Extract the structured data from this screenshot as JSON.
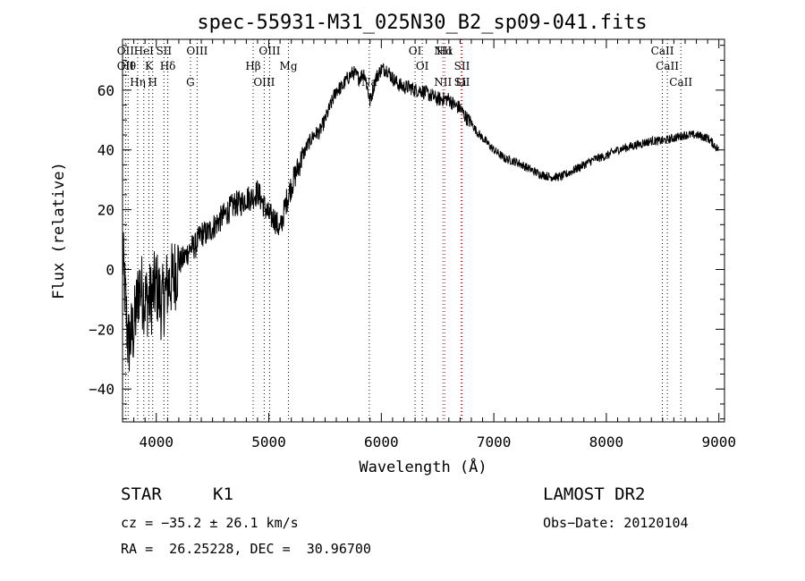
{
  "chart_data": {
    "type": "line",
    "title": "spec-55931-M31_025N30_B2_sp09-041.fits",
    "xlabel": "Wavelength (Å)",
    "ylabel": "Flux (relative)",
    "xlim": [
      3700,
      9050
    ],
    "ylim": [
      -51,
      77
    ],
    "x_ticks": [
      4000,
      5000,
      6000,
      7000,
      8000,
      9000
    ],
    "x_tick_labels": [
      "4000",
      "5000",
      "6000",
      "7000",
      "8000",
      "9000"
    ],
    "y_ticks": [
      -40,
      -20,
      0,
      20,
      40,
      60
    ],
    "y_tick_labels": [
      "−40",
      "−20",
      "0",
      "20",
      "40",
      "60"
    ],
    "grid": false,
    "color": "#000000",
    "series": [
      {
        "x": [
          3700,
          3750,
          3800,
          3850,
          3900,
          3950,
          4000,
          4050,
          4100,
          4150,
          4200,
          4250,
          4300,
          4350,
          4400,
          4450,
          4500,
          4550,
          4600,
          4650,
          4700,
          4750,
          4800,
          4850,
          4900,
          4950,
          5000,
          5050,
          5100,
          5150,
          5200,
          5250,
          5300,
          5350,
          5400,
          5450,
          5500,
          5550,
          5600,
          5650,
          5700,
          5750,
          5800,
          5850,
          5900,
          5950,
          6000,
          6050,
          6100,
          6150,
          6200,
          6250,
          6300,
          6350,
          6400,
          6450,
          6500,
          6550,
          6600,
          6650,
          6700,
          6750,
          6800,
          6850,
          6900,
          6950,
          7000,
          7100,
          7200,
          7300,
          7400,
          7500,
          7600,
          7700,
          7800,
          7900,
          8000,
          8100,
          8200,
          8300,
          8400,
          8500,
          8600,
          8700,
          8800,
          8900,
          8950,
          9000
        ],
        "values": [
          5,
          -25,
          -20,
          -5,
          -10,
          -10,
          -5,
          -12,
          -5,
          -3,
          2,
          4,
          7,
          8,
          12,
          12,
          14,
          16,
          18,
          20,
          22,
          22,
          24,
          24,
          26,
          22,
          18,
          17,
          13,
          22,
          28,
          33,
          38,
          42,
          45,
          46,
          50,
          55,
          60,
          61,
          64,
          66,
          64,
          66,
          56,
          64,
          67,
          67,
          64,
          62,
          61,
          61,
          60,
          60,
          59,
          58,
          57,
          57,
          57,
          55,
          54,
          51,
          49,
          46,
          44,
          42,
          40,
          37,
          36,
          34,
          32,
          31,
          31,
          33,
          35,
          37,
          38,
          40,
          41,
          42,
          43,
          43,
          44,
          45,
          45,
          44,
          42,
          40
        ]
      }
    ],
    "line_markers": [
      {
        "x": 3727,
        "labels": [
          "OII",
          "OII"
        ],
        "color": "#000000"
      },
      {
        "x": 3750,
        "labels": [
          "Hθ"
        ],
        "color": "#000000"
      },
      {
        "x": 3835,
        "labels": [
          "Hη"
        ],
        "color": "#000000"
      },
      {
        "x": 3889,
        "labels": [
          "HeI"
        ],
        "color": "#000000"
      },
      {
        "x": 3934,
        "labels": [
          "K"
        ],
        "color": "#000000"
      },
      {
        "x": 3968,
        "labels": [
          "H"
        ],
        "color": "#000000"
      },
      {
        "x": 4068,
        "labels": [
          "SII"
        ],
        "color": "#000000"
      },
      {
        "x": 4102,
        "labels": [
          "Hδ"
        ],
        "color": "#000000"
      },
      {
        "x": 4304,
        "labels": [
          "G"
        ],
        "color": "#000000"
      },
      {
        "x": 4363,
        "labels": [
          "OIII"
        ],
        "color": "#000000"
      },
      {
        "x": 4861,
        "labels": [
          "Hβ"
        ],
        "color": "#000000"
      },
      {
        "x": 4959,
        "labels": [
          "OIII"
        ],
        "color": "#000000"
      },
      {
        "x": 5007,
        "labels": [
          "OIII"
        ],
        "color": "#000000"
      },
      {
        "x": 5175,
        "labels": [
          "Mg"
        ],
        "color": "#000000"
      },
      {
        "x": 5893,
        "labels": [
          "Na"
        ],
        "color": "#000000"
      },
      {
        "x": 6300,
        "labels": [
          "OI"
        ],
        "color": "#000000"
      },
      {
        "x": 6364,
        "labels": [
          "OI"
        ],
        "color": "#000000"
      },
      {
        "x": 6548,
        "labels": [
          "NII",
          "NII"
        ],
        "color": "#cc0000"
      },
      {
        "x": 6563,
        "labels": [
          "Hα"
        ],
        "color": "#cc0000"
      },
      {
        "x": 6717,
        "labels": [
          "SII",
          "SII"
        ],
        "color": "#cc0000"
      },
      {
        "x": 6708,
        "labels": [
          "Li"
        ],
        "color": "#cc0000"
      },
      {
        "x": 8498,
        "labels": [
          "CaII"
        ],
        "color": "#000000"
      },
      {
        "x": 8542,
        "labels": [
          "CaII"
        ],
        "color": "#000000"
      },
      {
        "x": 8662,
        "labels": [
          "CaII"
        ],
        "color": "#000000"
      }
    ]
  },
  "footer": {
    "object_class": "STAR",
    "subclass": "K1",
    "survey": "LAMOST DR2",
    "redshift": "cz = −35.2 ± 26.1 km/s",
    "obs_date": "Obs−Date: 20120104",
    "coords": "RA =  26.25228, DEC =  30.96700"
  }
}
